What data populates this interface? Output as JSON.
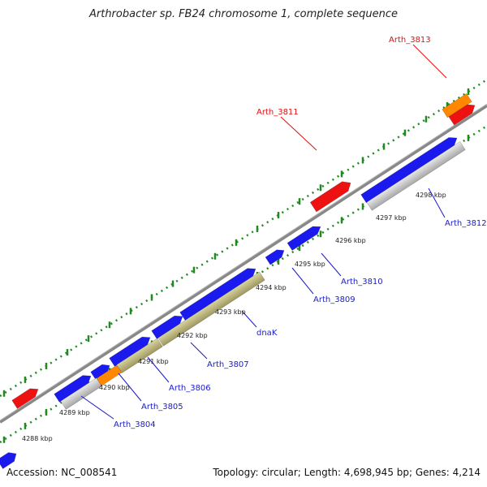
{
  "title": "Arthrobacter sp. FB24 chromosome 1, complete sequence",
  "footer": {
    "accession": "Accession: NC_008541",
    "summary": "Topology: circular; Length: 4,698,945 bp; Genes: 4,214"
  },
  "colors": {
    "forward_gene": "#1a1aee",
    "reverse_gene": "#ee1111",
    "label_blue": "#1a1acc",
    "label_red": "#dd1111",
    "rrna": "#ff8800",
    "trna_khaki": "#bdb880",
    "pseudo_grey": "#c0c0c0",
    "backbone": "#808080",
    "tick": "#228822"
  },
  "scale": {
    "ticks": [
      {
        "label": "4288 kbp"
      },
      {
        "label": "4289 kbp"
      },
      {
        "label": "4290 kbp"
      },
      {
        "label": "4291 kbp"
      },
      {
        "label": "4292 kbp"
      },
      {
        "label": "4293 kbp"
      },
      {
        "label": "4294 kbp"
      },
      {
        "label": "4295 kbp"
      },
      {
        "label": "4296 kbp"
      },
      {
        "label": "4297 kbp"
      },
      {
        "label": "4298 kbp"
      }
    ]
  },
  "gene_labels": [
    {
      "name": "Arth_3804",
      "color": "blue"
    },
    {
      "name": "Arth_3805",
      "color": "blue"
    },
    {
      "name": "Arth_3806",
      "color": "blue"
    },
    {
      "name": "Arth_3807",
      "color": "blue"
    },
    {
      "name": "dnaK",
      "color": "blue"
    },
    {
      "name": "Arth_3809",
      "color": "blue"
    },
    {
      "name": "Arth_3810",
      "color": "blue"
    },
    {
      "name": "Arth_3811",
      "color": "red"
    },
    {
      "name": "Arth_3812",
      "color": "blue"
    },
    {
      "name": "Arth_3813",
      "color": "red"
    }
  ]
}
